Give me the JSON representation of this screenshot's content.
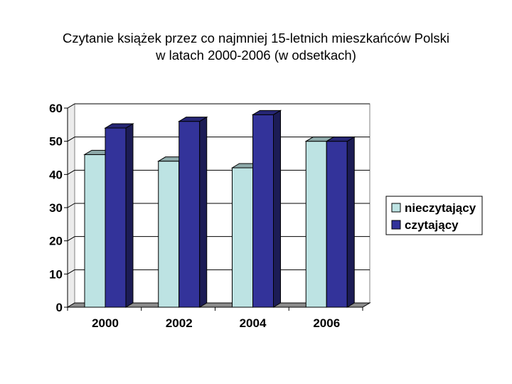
{
  "title_line1": "Czytanie książek przez co najmniej 15-letnich mieszkańców Polski",
  "title_line2": "w latach 2000-2006 (w odsetkach)",
  "chart_data": {
    "type": "bar",
    "categories": [
      "2000",
      "2002",
      "2004",
      "2006"
    ],
    "series": [
      {
        "name": "nieczytający",
        "values": [
          46,
          44,
          42,
          50
        ],
        "color": "#bde3e3"
      },
      {
        "name": "czytający",
        "values": [
          54,
          56,
          58,
          50
        ],
        "color": "#33339a"
      }
    ],
    "ylim": [
      0,
      60
    ],
    "yticks": [
      0,
      10,
      20,
      30,
      40,
      50,
      60
    ],
    "grid": true,
    "legend": "right"
  }
}
